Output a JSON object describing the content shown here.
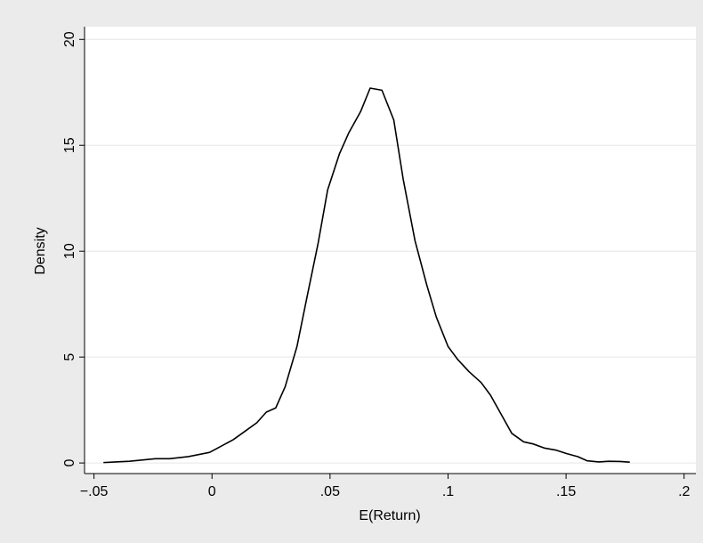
{
  "chart_data": {
    "type": "line",
    "x_label": "E(Return)",
    "y_label": "Density",
    "x": [
      -0.046,
      -0.035,
      -0.024,
      -0.018,
      -0.01,
      -0.001,
      0.004,
      0.009,
      0.014,
      0.019,
      0.023,
      0.027,
      0.031,
      0.036,
      0.04,
      0.045,
      0.049,
      0.054,
      0.058,
      0.063,
      0.067,
      0.072,
      0.077,
      0.081,
      0.086,
      0.091,
      0.095,
      0.1,
      0.104,
      0.109,
      0.114,
      0.118,
      0.123,
      0.127,
      0.132,
      0.136,
      0.141,
      0.146,
      0.15,
      0.155,
      0.159,
      0.164,
      0.168,
      0.173,
      0.177
    ],
    "series": [
      {
        "color": "#000000",
        "values": [
          0.02,
          0.08,
          0.2,
          0.2,
          0.3,
          0.5,
          0.8,
          1.1,
          1.5,
          1.9,
          2.4,
          2.6,
          3.6,
          5.5,
          7.7,
          10.4,
          12.9,
          14.6,
          15.6,
          16.6,
          17.7,
          17.6,
          16.2,
          13.4,
          10.5,
          8.4,
          6.9,
          5.5,
          4.9,
          4.3,
          3.8,
          3.2,
          2.2,
          1.4,
          1.0,
          0.9,
          0.7,
          0.6,
          0.45,
          0.3,
          0.1,
          0.05,
          0.08,
          0.07,
          0.04
        ]
      }
    ],
    "xlim": [
      -0.054,
      0.205
    ],
    "ylim": [
      -0.5,
      20.6
    ],
    "xticks": [
      {
        "value": -0.05,
        "label": "−.05"
      },
      0,
      {
        "value": 0.05,
        "label": ".05"
      },
      {
        "value": 0.1,
        "label": ".1"
      },
      {
        "value": 0.15,
        "label": ".15"
      },
      {
        "value": 0.2,
        "label": ".2"
      }
    ],
    "yticks": [
      0,
      5,
      10,
      15,
      20
    ],
    "grid": true
  }
}
